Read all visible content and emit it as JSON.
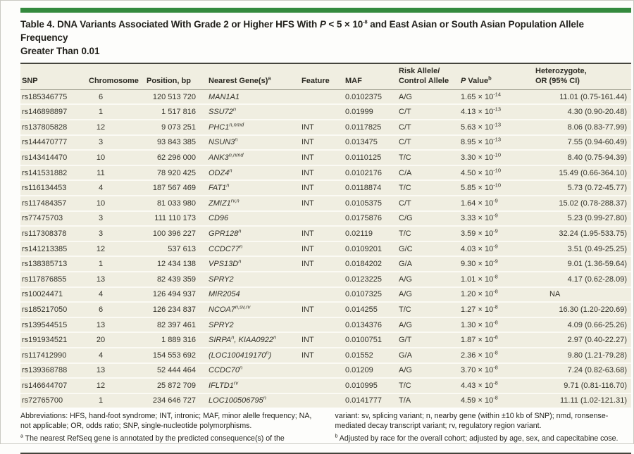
{
  "page": {
    "accent_green": "#348a3e",
    "row_bg": "#f0eee1",
    "title_lines": [
      "Table 4. DNA Variants Associated With Grade 2 or Higher HFS With *P* < 5 × 10^{-8} and East Asian or South Asian Population Allele Frequency",
      "Greater Than 0.01"
    ]
  },
  "table": {
    "columns": [
      {
        "key": "snp",
        "lines": [
          "SNP"
        ]
      },
      {
        "key": "chr",
        "lines": [
          "Chromosome"
        ]
      },
      {
        "key": "pos",
        "lines": [
          "Position, bp"
        ]
      },
      {
        "key": "gene",
        "lines": [
          "Nearest Gene(s)^{a}"
        ]
      },
      {
        "key": "feature",
        "lines": [
          "Feature"
        ]
      },
      {
        "key": "maf",
        "lines": [
          "MAF"
        ]
      },
      {
        "key": "allele",
        "lines": [
          "Risk Allele/",
          "Control Allele"
        ]
      },
      {
        "key": "p",
        "lines": [
          "*P* Value^{b}"
        ]
      },
      {
        "key": "or",
        "lines": [
          "Heterozygote,",
          "OR (95% CI)"
        ]
      }
    ],
    "rows": [
      {
        "snp": "rs185346775",
        "chr": "6",
        "pos": "120 513 720",
        "gene": "MAN1A1",
        "feature": "",
        "maf": "0.0102375",
        "allele": "A/G",
        "p": "1.65 × 10^{-14}",
        "or": "11.01 (0.75-161.44)"
      },
      {
        "snp": "rs146898897",
        "chr": "1",
        "pos": "1 517 816",
        "gene": "SSU72^{n}",
        "feature": "",
        "maf": "0.01999",
        "allele": "C/T",
        "p": "4.13 × 10^{-13}",
        "or": "4.30 (0.90-20.48)"
      },
      {
        "snp": "rs137805828",
        "chr": "12",
        "pos": "9 073 251",
        "gene": "PHC1^{n,nmd}",
        "feature": "INT",
        "maf": "0.0117825",
        "allele": "C/T",
        "p": "5.63 × 10^{-13}",
        "or": "8.06 (0.83-77.99)"
      },
      {
        "snp": "rs144470777",
        "chr": "3",
        "pos": "93 843 385",
        "gene": "NSUN3^{n}",
        "feature": "INT",
        "maf": "0.013475",
        "allele": "C/T",
        "p": "8.95 × 10^{-13}",
        "or": "7.55 (0.94-60.49)"
      },
      {
        "snp": "rs143414470",
        "chr": "10",
        "pos": "62 296 000",
        "gene": "ANK3^{n,nmd}",
        "feature": "INT",
        "maf": "0.0110125",
        "allele": "T/C",
        "p": "3.30 × 10^{-10}",
        "or": "8.40 (0.75-94.39)"
      },
      {
        "snp": "rs141531882",
        "chr": "11",
        "pos": "78 920 425",
        "gene": "ODZ4^{n}",
        "feature": "INT",
        "maf": "0.0102176",
        "allele": "C/A",
        "p": "4.50 × 10^{-10}",
        "or": "15.49 (0.66-364.10)"
      },
      {
        "snp": "rs116134453",
        "chr": "4",
        "pos": "187 567 469",
        "gene": "FAT1^{n}",
        "feature": "INT",
        "maf": "0.0118874",
        "allele": "T/C",
        "p": "5.85 × 10^{-10}",
        "or": "5.73 (0.72-45.77)"
      },
      {
        "snp": "rs117484357",
        "chr": "10",
        "pos": "81 033 980",
        "gene": "ZMIZ1^{rv,n}",
        "feature": "INT",
        "maf": "0.0105375",
        "allele": "C/T",
        "p": "1.64 × 10^{-9}",
        "or": "15.02 (0.78-288.37)"
      },
      {
        "snp": "rs77475703",
        "chr": "3",
        "pos": "111 110 173",
        "gene": "CD96",
        "feature": "",
        "maf": "0.0175876",
        "allele": "C/G",
        "p": "3.33 × 10^{-9}",
        "or": "5.23 (0.99-27.80)"
      },
      {
        "snp": "rs117308378",
        "chr": "3",
        "pos": "100 396 227",
        "gene": "GPR128^{n}",
        "feature": "INT",
        "maf": "0.02119",
        "allele": "T/C",
        "p": "3.59 × 10^{-9}",
        "or": "32.24 (1.95-533.75)"
      },
      {
        "snp": "rs141213385",
        "chr": "12",
        "pos": "537 613",
        "gene": "CCDC77^{n}",
        "feature": "INT",
        "maf": "0.0109201",
        "allele": "G/C",
        "p": "4.03 × 10^{-9}",
        "or": "3.51 (0.49-25.25)"
      },
      {
        "snp": "rs138385713",
        "chr": "1",
        "pos": "12 434 138",
        "gene": "VPS13D^{n}",
        "feature": "INT",
        "maf": "0.0184202",
        "allele": "G/A",
        "p": "9.30 × 10^{-9}",
        "or": "9.01 (1.36-59.64)"
      },
      {
        "snp": "rs117876855",
        "chr": "13",
        "pos": "82 439 359",
        "gene": "SPRY2",
        "feature": "",
        "maf": "0.0123225",
        "allele": "A/G",
        "p": "1.01 × 10^{-8}",
        "or": "4.17 (0.62-28.09)"
      },
      {
        "snp": "rs10024471",
        "chr": "4",
        "pos": "126 494 937",
        "gene": "MIR2054",
        "feature": "",
        "maf": "0.0107325",
        "allele": "A/G",
        "p": "1.20 × 10^{-8}",
        "or": "NA"
      },
      {
        "snp": "rs185217050",
        "chr": "6",
        "pos": "126 234 837",
        "gene": "NCOA7^{n,sv,rv}",
        "feature": "INT",
        "maf": "0.014255",
        "allele": "T/C",
        "p": "1.27 × 10^{-8}",
        "or": "16.30 (1.20-220.69)"
      },
      {
        "snp": "rs139544515",
        "chr": "13",
        "pos": "82 397 461",
        "gene": "SPRY2",
        "feature": "",
        "maf": "0.0134376",
        "allele": "A/G",
        "p": "1.30 × 10^{-8}",
        "or": "4.09 (0.66-25.26)"
      },
      {
        "snp": "rs191934521",
        "chr": "20",
        "pos": "1 889 316",
        "gene": "SIRPA^{n}, KIAA0922^{n}",
        "feature": "INT",
        "maf": "0.0100751",
        "allele": "G/T",
        "p": "1.87 × 10^{-8}",
        "or": "2.97 (0.40-22.27)"
      },
      {
        "snp": "rs117412990",
        "chr": "4",
        "pos": "154 553 692",
        "gene": "(LOC100419170^{n})",
        "feature": "INT",
        "maf": "0.01552",
        "allele": "G/A",
        "p": "2.36 × 10^{-8}",
        "or": "9.80 (1.21-79.28)"
      },
      {
        "snp": "rs139368788",
        "chr": "13",
        "pos": "52 444 464",
        "gene": "CCDC70^{n}",
        "feature": "",
        "maf": "0.01209",
        "allele": "A/G",
        "p": "3.70 × 10^{-8}",
        "or": "7.24 (0.82-63.68)"
      },
      {
        "snp": "rs146644707",
        "chr": "12",
        "pos": "25 872 709",
        "gene": "IFLTD1^{rv}",
        "feature": "",
        "maf": "0.010995",
        "allele": "T/C",
        "p": "4.43 × 10^{-8}",
        "or": "9.71 (0.81-116.70)"
      },
      {
        "snp": "rs72765700",
        "chr": "1",
        "pos": "234 646 727",
        "gene": "LOC100506795^{n}",
        "feature": "",
        "maf": "0.0141777",
        "allele": "T/A",
        "p": "4.59 × 10^{-8}",
        "or": "11.11 (1.02-121.31)"
      }
    ]
  },
  "footnotes": {
    "left": [
      "Abbreviations: HFS, hand-foot syndrome; INT, intronic; MAF, minor alelle frequency; NA, not applicable; OR, odds ratio; SNP, single-nucleotide polymorphisms.",
      "^{a} The nearest RefSeq gene is annotated by the predicted consequence(s) of the"
    ],
    "right": [
      "variant: sv, splicing variant; n, nearby gene (within ±10 kb of SNP); nmd, ronsense-mediated decay transcript variant; rv, regulatory region variant.",
      "^{b} Adjusted by race for the overall cohort; adjusted by age, sex, and capecitabine cose."
    ]
  }
}
